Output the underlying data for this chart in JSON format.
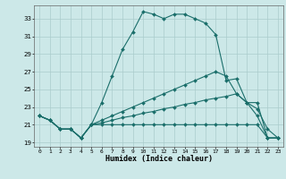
{
  "xlabel": "Humidex (Indice chaleur)",
  "bg_color": "#cce8e8",
  "grid_color": "#aacccc",
  "line_color": "#1a6e6a",
  "xlim": [
    -0.5,
    23.5
  ],
  "ylim": [
    18.5,
    34.5
  ],
  "yticks": [
    19,
    21,
    23,
    25,
    27,
    29,
    31,
    33
  ],
  "xticks": [
    0,
    1,
    2,
    3,
    4,
    5,
    6,
    7,
    8,
    9,
    10,
    11,
    12,
    13,
    14,
    15,
    16,
    17,
    18,
    19,
    20,
    21,
    22,
    23
  ],
  "line1": [
    [
      0,
      22.0
    ],
    [
      1,
      21.5
    ],
    [
      2,
      20.5
    ],
    [
      3,
      20.5
    ],
    [
      4,
      19.5
    ],
    [
      5,
      21.0
    ],
    [
      6,
      23.5
    ],
    [
      7,
      26.5
    ],
    [
      8,
      29.5
    ],
    [
      9,
      31.5
    ],
    [
      10,
      33.8
    ],
    [
      11,
      33.5
    ],
    [
      12,
      33.0
    ],
    [
      13,
      33.5
    ],
    [
      14,
      33.5
    ],
    [
      15,
      33.0
    ],
    [
      16,
      32.5
    ],
    [
      17,
      31.2
    ],
    [
      18,
      26.0
    ],
    [
      19,
      26.2
    ],
    [
      20,
      23.5
    ],
    [
      21,
      22.8
    ],
    [
      22,
      20.5
    ],
    [
      23,
      19.5
    ]
  ],
  "line2": [
    [
      0,
      22.0
    ],
    [
      1,
      21.5
    ],
    [
      2,
      20.5
    ],
    [
      3,
      20.5
    ],
    [
      4,
      19.5
    ],
    [
      5,
      21.0
    ],
    [
      6,
      21.5
    ],
    [
      7,
      22.0
    ],
    [
      8,
      22.5
    ],
    [
      9,
      23.0
    ],
    [
      10,
      23.5
    ],
    [
      11,
      24.0
    ],
    [
      12,
      24.5
    ],
    [
      13,
      25.0
    ],
    [
      14,
      25.5
    ],
    [
      15,
      26.0
    ],
    [
      16,
      26.5
    ],
    [
      17,
      27.0
    ],
    [
      18,
      26.5
    ],
    [
      19,
      24.5
    ],
    [
      20,
      23.5
    ],
    [
      21,
      23.5
    ],
    [
      22,
      19.5
    ],
    [
      23,
      19.5
    ]
  ],
  "line3": [
    [
      0,
      22.0
    ],
    [
      1,
      21.5
    ],
    [
      2,
      20.5
    ],
    [
      3,
      20.5
    ],
    [
      4,
      19.5
    ],
    [
      5,
      21.0
    ],
    [
      6,
      21.2
    ],
    [
      7,
      21.5
    ],
    [
      8,
      21.8
    ],
    [
      9,
      22.0
    ],
    [
      10,
      22.3
    ],
    [
      11,
      22.5
    ],
    [
      12,
      22.8
    ],
    [
      13,
      23.0
    ],
    [
      14,
      23.3
    ],
    [
      15,
      23.5
    ],
    [
      16,
      23.8
    ],
    [
      17,
      24.0
    ],
    [
      18,
      24.2
    ],
    [
      19,
      24.5
    ],
    [
      20,
      23.5
    ],
    [
      21,
      22.0
    ],
    [
      22,
      19.5
    ],
    [
      23,
      19.5
    ]
  ],
  "line4": [
    [
      0,
      22.0
    ],
    [
      1,
      21.5
    ],
    [
      2,
      20.5
    ],
    [
      3,
      20.5
    ],
    [
      4,
      19.5
    ],
    [
      5,
      21.0
    ],
    [
      6,
      21.0
    ],
    [
      7,
      21.0
    ],
    [
      8,
      21.0
    ],
    [
      9,
      21.0
    ],
    [
      10,
      21.0
    ],
    [
      11,
      21.0
    ],
    [
      12,
      21.0
    ],
    [
      13,
      21.0
    ],
    [
      14,
      21.0
    ],
    [
      15,
      21.0
    ],
    [
      16,
      21.0
    ],
    [
      17,
      21.0
    ],
    [
      18,
      21.0
    ],
    [
      19,
      21.0
    ],
    [
      20,
      21.0
    ],
    [
      21,
      21.0
    ],
    [
      22,
      19.5
    ],
    [
      23,
      19.5
    ]
  ]
}
